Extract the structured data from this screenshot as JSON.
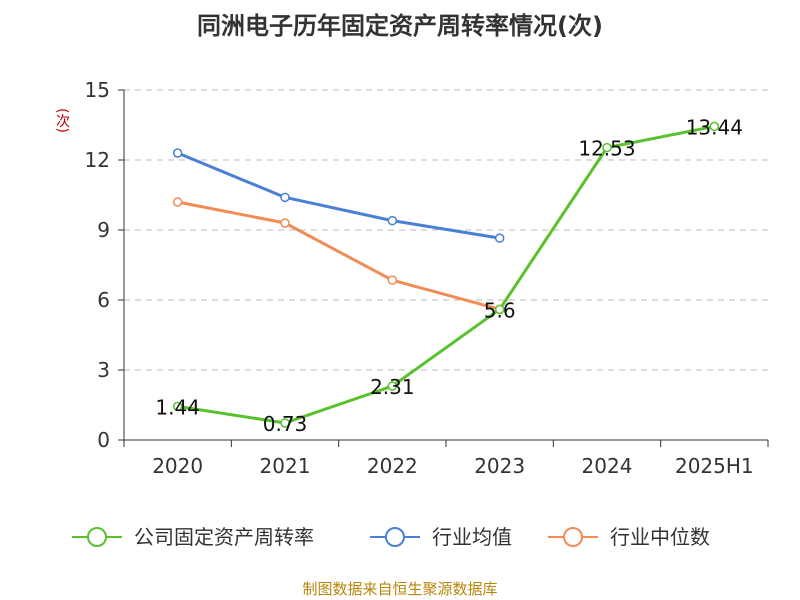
{
  "chart_data": {
    "type": "line",
    "title": "同洲电子历年固定资产周转率情况(次)",
    "ylabel": "(次)",
    "categories": [
      "2020",
      "2021",
      "2022",
      "2023",
      "2024",
      "2025H1"
    ],
    "ylim": [
      0,
      15
    ],
    "yticks": [
      0,
      3,
      6,
      9,
      12,
      15
    ],
    "grid": true,
    "legend_position": "bottom",
    "series": [
      {
        "name": "公司固定资产周转率",
        "color": "#5ac12e",
        "values": [
          1.44,
          0.73,
          2.31,
          5.6,
          12.53,
          13.44
        ],
        "labels": [
          "1.44",
          "0.73",
          "2.31",
          "5.6",
          "12.53",
          "13.44"
        ]
      },
      {
        "name": "行业均值",
        "color": "#4a7fd6",
        "values": [
          12.3,
          10.4,
          9.4,
          8.65,
          null,
          null
        ]
      },
      {
        "name": "行业中位数",
        "color": "#f28c56",
        "values": [
          10.2,
          9.3,
          6.85,
          5.6,
          null,
          null
        ]
      }
    ]
  },
  "source_text": "制图数据来自恒生聚源数据库"
}
